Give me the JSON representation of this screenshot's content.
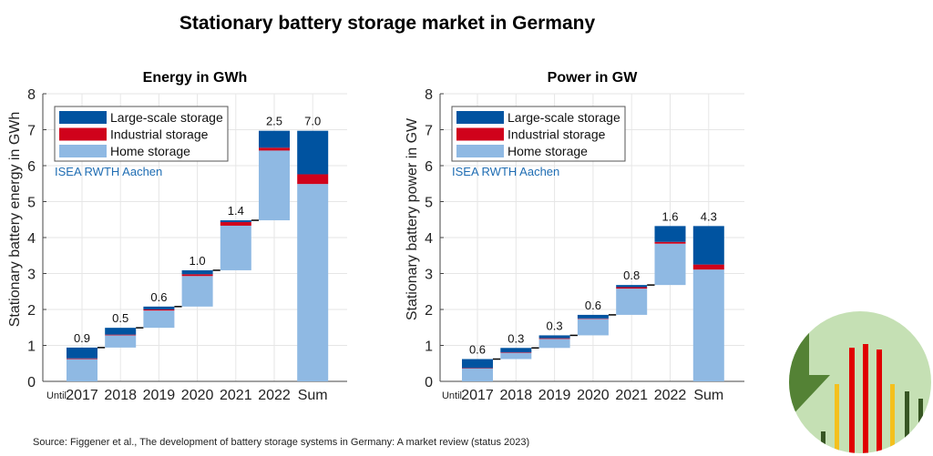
{
  "title": "Stationary battery storage market in Germany",
  "source": "Source: Figgener et al., The development of battery storage systems in Germany: A market review (status 2023)",
  "colors": {
    "large": "#0053a0",
    "industrial": "#d0021b",
    "home": "#8fb9e3",
    "connector": "#000000",
    "watermark": "#1f6db3"
  },
  "logo": {
    "icon": "battery-market-logo-icon"
  },
  "chart_data": [
    {
      "type": "bar",
      "subtype": "waterfall-stacked",
      "title": "Energy in GWh",
      "ylabel": "Stationary battery energy in GWh",
      "xlabel": "",
      "ylim": [
        0,
        8
      ],
      "yticks": [
        "0",
        "1",
        "2",
        "3",
        "4",
        "5",
        "6",
        "7",
        "8"
      ],
      "x_prefix": "Until",
      "categories": [
        "2017",
        "2018",
        "2019",
        "2020",
        "2021",
        "2022",
        "Sum"
      ],
      "totals_labels": [
        "0.9",
        "0.5",
        "0.6",
        "1.0",
        "1.4",
        "2.5",
        "7.0"
      ],
      "base": [
        0,
        0.94,
        1.49,
        2.08,
        3.09,
        4.48,
        0
      ],
      "series": [
        {
          "name": "Home storage",
          "key": "home",
          "values": [
            0.62,
            0.34,
            0.48,
            0.85,
            1.24,
            1.94,
            5.49
          ]
        },
        {
          "name": "Industrial storage",
          "key": "industrial",
          "values": [
            0.02,
            0.02,
            0.03,
            0.05,
            0.1,
            0.08,
            0.27
          ]
        },
        {
          "name": "Large-scale storage",
          "key": "large",
          "values": [
            0.3,
            0.19,
            0.08,
            0.11,
            0.05,
            0.47,
            1.21
          ]
        }
      ],
      "legend": [
        "Large-scale storage",
        "Industrial storage",
        "Home storage"
      ],
      "legend_position": "top-left",
      "watermark": "ISEA RWTH Aachen",
      "grid": true
    },
    {
      "type": "bar",
      "subtype": "waterfall-stacked",
      "title": "Power in GW",
      "ylabel": "Stationary battery power in GW",
      "xlabel": "",
      "ylim": [
        0,
        8
      ],
      "yticks": [
        "0",
        "1",
        "2",
        "3",
        "4",
        "5",
        "6",
        "7",
        "8"
      ],
      "x_prefix": "Until",
      "categories": [
        "2017",
        "2018",
        "2019",
        "2020",
        "2021",
        "2022",
        "Sum"
      ],
      "totals_labels": [
        "0.6",
        "0.3",
        "0.3",
        "0.6",
        "0.8",
        "1.6",
        "4.3"
      ],
      "base": [
        0,
        0.62,
        0.93,
        1.28,
        1.85,
        2.68,
        0
      ],
      "series": [
        {
          "name": "Home storage",
          "key": "home",
          "values": [
            0.36,
            0.18,
            0.25,
            0.46,
            0.73,
            1.15,
            3.11
          ]
        },
        {
          "name": "Industrial storage",
          "key": "industrial",
          "values": [
            0.01,
            0.01,
            0.02,
            0.01,
            0.04,
            0.05,
            0.14
          ]
        },
        {
          "name": "Large-scale storage",
          "key": "large",
          "values": [
            0.25,
            0.12,
            0.08,
            0.1,
            0.06,
            0.44,
            1.07
          ]
        }
      ],
      "legend": [
        "Large-scale storage",
        "Industrial storage",
        "Home storage"
      ],
      "legend_position": "top-left",
      "watermark": "ISEA RWTH Aachen",
      "grid": true
    }
  ]
}
